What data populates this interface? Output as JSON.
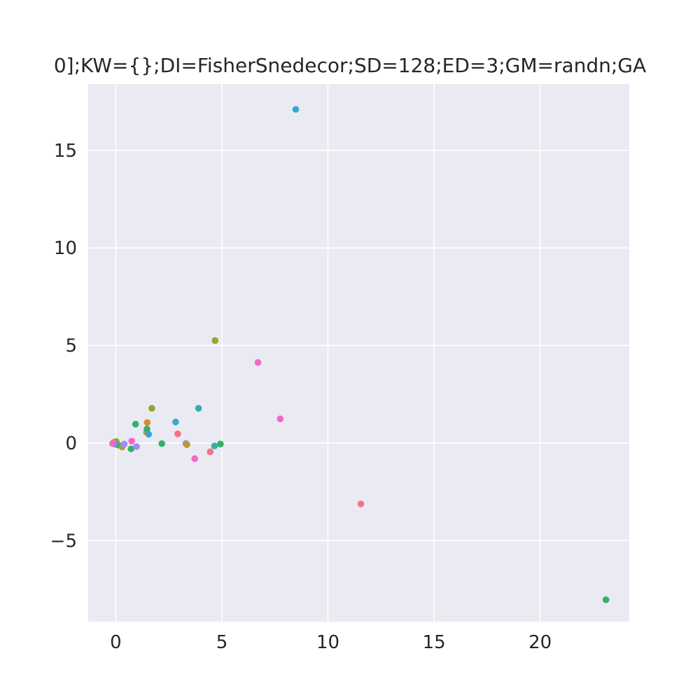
{
  "chart_data": {
    "type": "scatter",
    "title": "0];KW={};DI=FisherSnedecor;SD=128;ED=3;GM=randn;GA",
    "xlabel": "",
    "ylabel": "",
    "xlim": [
      -1.3,
      24.2
    ],
    "ylim": [
      -9.15,
      18.4
    ],
    "grid": true,
    "legend": "none",
    "colors": {
      "background": "#eaeaf2",
      "grid": "#ffffff",
      "text": "#262626"
    },
    "x_ticks": [
      0,
      5,
      10,
      15,
      20
    ],
    "x_tick_labels": [
      "0",
      "5",
      "10",
      "15",
      "20"
    ],
    "y_ticks": [
      -5,
      0,
      5,
      10,
      15
    ],
    "y_tick_labels": [
      "−5",
      "0",
      "5",
      "10",
      "15"
    ],
    "points": [
      {
        "x": -0.15,
        "y": -0.02,
        "color": "#f77189"
      },
      {
        "x": -0.1,
        "y": 0.03,
        "color": "#bb9832"
      },
      {
        "x": -0.05,
        "y": -0.05,
        "color": "#36ada4"
      },
      {
        "x": 0.0,
        "y": 0.05,
        "color": "#a48cf4"
      },
      {
        "x": 0.05,
        "y": -0.03,
        "color": "#f565cc"
      },
      {
        "x": -0.08,
        "y": 0.0,
        "color": "#dc89f5"
      },
      {
        "x": 0.02,
        "y": 0.08,
        "color": "#97a431"
      },
      {
        "x": 0.1,
        "y": -0.1,
        "color": "#39a7d0"
      },
      {
        "x": 0.25,
        "y": -0.15,
        "color": "#32b166"
      },
      {
        "x": 0.3,
        "y": -0.2,
        "color": "#bb9832"
      },
      {
        "x": 0.4,
        "y": -0.05,
        "color": "#a48cf4"
      },
      {
        "x": -0.12,
        "y": -0.02,
        "color": "#f565cc"
      },
      {
        "x": 0.72,
        "y": -0.3,
        "color": "#32b166"
      },
      {
        "x": 0.75,
        "y": 0.1,
        "color": "#f565cc"
      },
      {
        "x": 0.93,
        "y": 0.97,
        "color": "#32b166"
      },
      {
        "x": 0.98,
        "y": -0.18,
        "color": "#a48cf4"
      },
      {
        "x": 1.45,
        "y": 0.55,
        "color": "#dc8932"
      },
      {
        "x": 1.48,
        "y": 1.05,
        "color": "#dc8932"
      },
      {
        "x": 1.47,
        "y": 0.72,
        "color": "#32b166"
      },
      {
        "x": 1.55,
        "y": 0.45,
        "color": "#39a7d0"
      },
      {
        "x": 1.7,
        "y": 1.78,
        "color": "#97a431"
      },
      {
        "x": 2.17,
        "y": -0.03,
        "color": "#32b166"
      },
      {
        "x": 2.82,
        "y": 1.08,
        "color": "#39a7d0"
      },
      {
        "x": 2.92,
        "y": 0.47,
        "color": "#f77189"
      },
      {
        "x": 3.3,
        "y": -0.02,
        "color": "#a48cf4"
      },
      {
        "x": 3.35,
        "y": -0.08,
        "color": "#bb9832"
      },
      {
        "x": 3.72,
        "y": -0.8,
        "color": "#f565cc"
      },
      {
        "x": 3.9,
        "y": 1.78,
        "color": "#36ada4"
      },
      {
        "x": 4.45,
        "y": -0.45,
        "color": "#f77189"
      },
      {
        "x": 4.65,
        "y": -0.15,
        "color": "#36ada4"
      },
      {
        "x": 4.68,
        "y": 5.25,
        "color": "#97a431"
      },
      {
        "x": 4.93,
        "y": -0.05,
        "color": "#32b166"
      },
      {
        "x": 6.7,
        "y": 4.13,
        "color": "#f565cc"
      },
      {
        "x": 7.75,
        "y": 1.24,
        "color": "#f565cc"
      },
      {
        "x": 8.48,
        "y": 17.1,
        "color": "#39a7d0"
      },
      {
        "x": 11.55,
        "y": -3.12,
        "color": "#f77189"
      },
      {
        "x": 23.1,
        "y": -8.03,
        "color": "#32b166"
      }
    ]
  }
}
